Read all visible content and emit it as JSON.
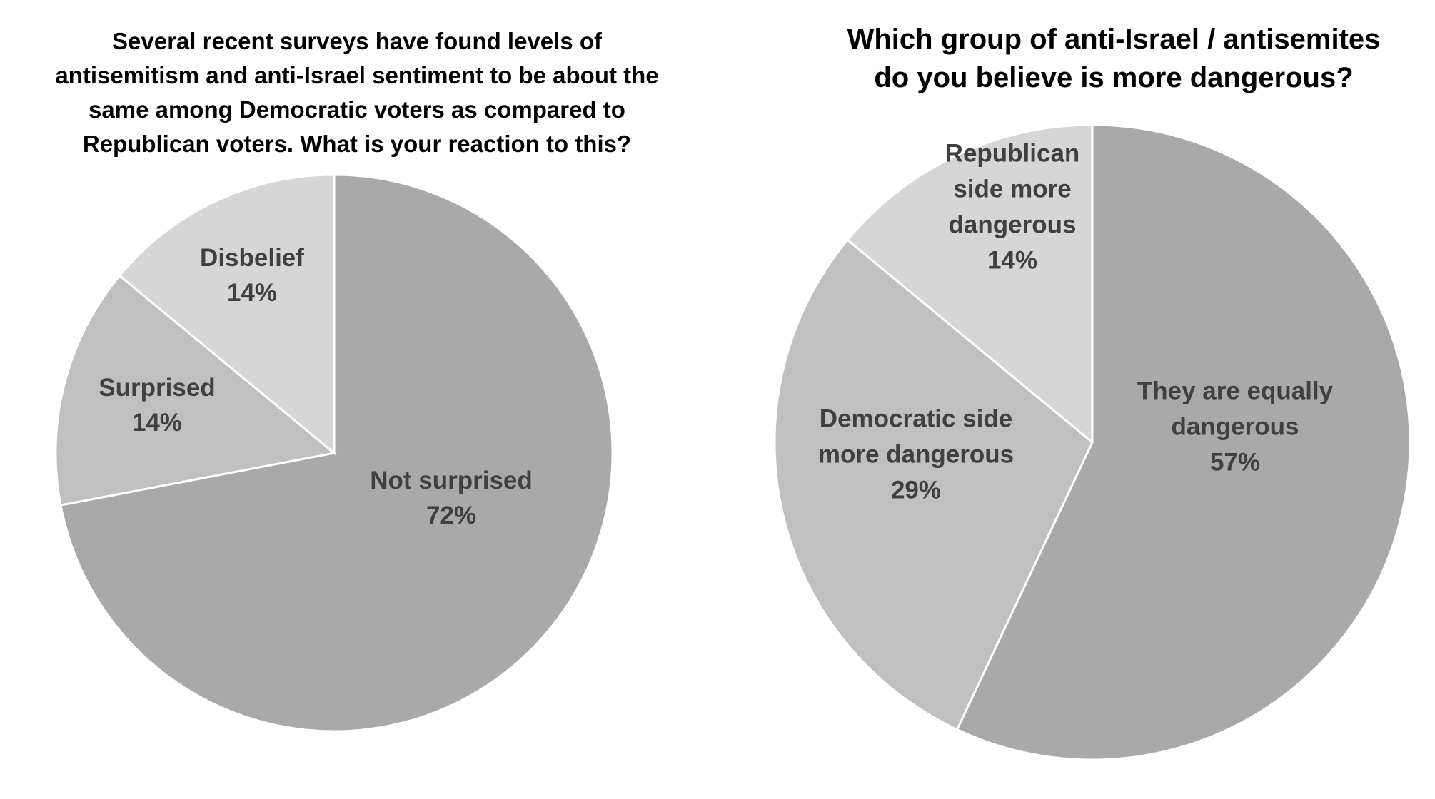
{
  "chart_data": [
    {
      "type": "pie",
      "title": "Several recent surveys have found levels of\nantisemitism and anti-Israel sentiment to be about the\nsame among Democratic voters as compared to\nRepublican voters. What is your reaction to this?",
      "slices": [
        {
          "label": "Not surprised",
          "value": 72,
          "value_label": "72%",
          "color": "#a9a9a9",
          "label_lines": [
            "Not surprised",
            "72%"
          ]
        },
        {
          "label": "Surprised",
          "value": 14,
          "value_label": "14%",
          "color": "#c0c0c0",
          "label_lines": [
            "Surprised",
            "14%"
          ]
        },
        {
          "label": "Disbelief",
          "value": 14,
          "value_label": "14%",
          "color": "#d6d6d6",
          "label_lines": [
            "Disbelief",
            "14%"
          ]
        }
      ]
    },
    {
      "type": "pie",
      "title": "Which group of anti-Israel / antisemites\ndo you believe is more dangerous?",
      "slices": [
        {
          "label": "They are equally dangerous",
          "value": 57,
          "value_label": "57%",
          "color": "#a9a9a9",
          "label_lines": [
            "They are equally",
            "dangerous",
            "57%"
          ]
        },
        {
          "label": "Democratic side more dangerous",
          "value": 29,
          "value_label": "29%",
          "color": "#c0c0c0",
          "label_lines": [
            "Democratic side",
            "more dangerous",
            "29%"
          ]
        },
        {
          "label": "Republican side more dangerous",
          "value": 14,
          "value_label": "14%",
          "color": "#d6d6d6",
          "label_lines": [
            "Republican",
            "side more",
            "dangerous",
            "14%"
          ]
        }
      ]
    }
  ]
}
